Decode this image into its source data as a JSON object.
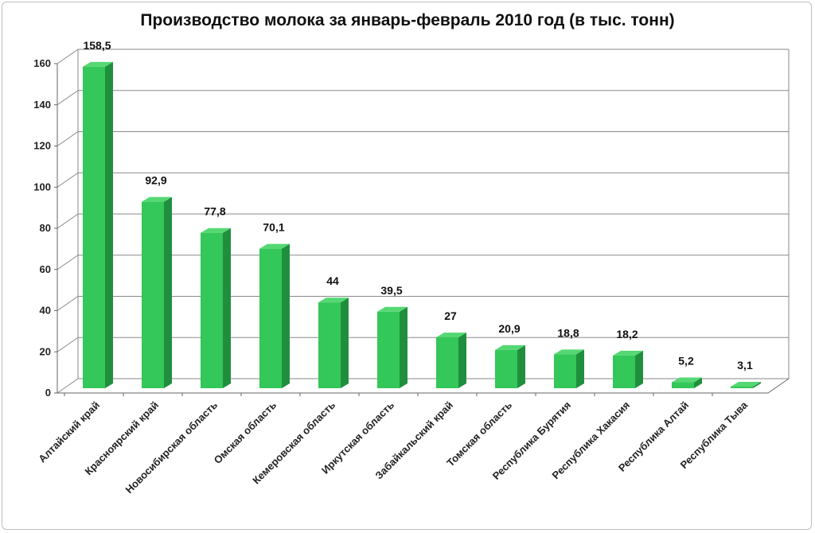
{
  "chart_data": {
    "type": "bar",
    "title": "Производство молока за январь-февраль 2010 год (в тыс. тонн)",
    "xlabel": "",
    "ylabel": "",
    "ylim": [
      0,
      160
    ],
    "yticks": [
      0,
      20,
      40,
      60,
      80,
      100,
      120,
      140,
      160
    ],
    "grid": true,
    "legend": "none",
    "categories": [
      "Алтайский край",
      "Красноярский край",
      "Новосибирская область",
      "Омская область",
      "Кемеровская область",
      "Иркутская область",
      "Забайкальский край",
      "Томская область",
      "Республика Бурятия",
      "Республика Хакасия",
      "Республика Алтай",
      "Республика Тыва"
    ],
    "values": [
      158.5,
      92.9,
      77.8,
      70.1,
      44,
      39.5,
      27,
      20.9,
      18.8,
      18.2,
      5.2,
      3.1
    ],
    "data_labels": [
      "158,5",
      "92,9",
      "77,8",
      "70,1",
      "44",
      "39,5",
      "27",
      "20,9",
      "18,8",
      "18,2",
      "5,2",
      "3,1"
    ],
    "colors": {
      "bar_front": "#34c759",
      "bar_side": "#1f8f3d",
      "bar_top": "#55d873",
      "grid": "#8a8a8a"
    }
  }
}
